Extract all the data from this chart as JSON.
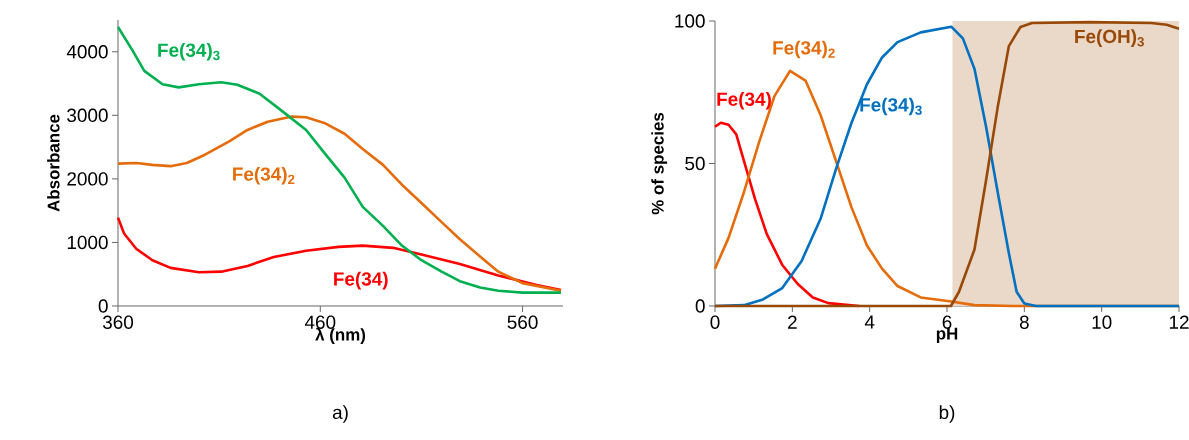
{
  "chart_data": [
    {
      "type": "line",
      "xlabel": "λ (nm)",
      "ylabel": "Absorbance",
      "xlim": [
        360,
        580
      ],
      "ylim": [
        0,
        4500
      ],
      "xticks": [
        360,
        460,
        560
      ],
      "yticks": [
        0,
        1000,
        2000,
        3000,
        4000
      ],
      "annotations": [
        "a)"
      ],
      "series": [
        {
          "name": "Fe(34)",
          "color": "#ff0000",
          "x": [
            360,
            363,
            369,
            377,
            386,
            400,
            411,
            424,
            437,
            453,
            469,
            481,
            496,
            510,
            529,
            548,
            567,
            579
          ],
          "values": [
            1390,
            1140,
            900,
            720,
            600,
            530,
            540,
            630,
            770,
            870,
            930,
            950,
            915,
            810,
            660,
            480,
            330,
            250
          ]
        },
        {
          "name": "Fe(34)$_{2}$",
          "color": "#e46c0a",
          "x": [
            360,
            369,
            377,
            386,
            394,
            403,
            415,
            424,
            434,
            446,
            453,
            462,
            472,
            481,
            491,
            500,
            510,
            520,
            529,
            539,
            548,
            560,
            579
          ],
          "values": [
            2240,
            2250,
            2220,
            2200,
            2250,
            2380,
            2590,
            2770,
            2900,
            2980,
            2970,
            2880,
            2710,
            2470,
            2220,
            1920,
            1620,
            1320,
            1050,
            780,
            540,
            360,
            240
          ]
        },
        {
          "name": "Fe(34)$_{3}$",
          "color": "#00b050",
          "x": [
            360,
            367,
            373,
            382,
            390,
            400,
            411,
            419,
            430,
            441,
            453,
            462,
            472,
            481,
            491,
            500,
            510,
            520,
            529,
            539,
            548,
            560,
            579
          ],
          "values": [
            4390,
            4030,
            3700,
            3490,
            3440,
            3490,
            3520,
            3480,
            3340,
            3070,
            2770,
            2410,
            2020,
            1560,
            1260,
            960,
            720,
            540,
            390,
            290,
            240,
            210,
            210
          ]
        }
      ]
    },
    {
      "type": "line",
      "xlabel": "pH",
      "ylabel": "% of species",
      "xlim": [
        0,
        12
      ],
      "ylim": [
        0,
        100
      ],
      "xticks": [
        0,
        2,
        4,
        6,
        8,
        10,
        12
      ],
      "yticks": [
        0,
        50,
        100
      ],
      "annotations": [
        "b)"
      ],
      "bands": [
        {
          "axis": "x",
          "from": 6.14,
          "to": 12,
          "color": "#ead9c9"
        }
      ],
      "series": [
        {
          "name": "Fe(34)",
          "color": "#ff0000",
          "x": [
            0,
            0.15,
            0.35,
            0.55,
            0.75,
            1.04,
            1.34,
            1.74,
            2.14,
            2.53,
            2.93,
            3.73
          ],
          "values": [
            62.9,
            64.3,
            63.6,
            60.2,
            50.8,
            37.3,
            25.2,
            14.4,
            7.7,
            3,
            1,
            0
          ]
        },
        {
          "name": "Fe(34)$_{2}$",
          "color": "#e46c0a",
          "x": [
            0,
            0.35,
            0.75,
            1.14,
            1.54,
            1.94,
            2.34,
            2.73,
            3.13,
            3.53,
            3.93,
            4.32,
            4.72,
            5.32,
            6.11,
            6.71,
            7.7,
            12
          ],
          "values": [
            13.1,
            23.9,
            40,
            57.5,
            73.7,
            82.5,
            79.1,
            67,
            50.8,
            34.6,
            21.2,
            13.1,
            7,
            3,
            1.6,
            0.3,
            0,
            0
          ]
        },
        {
          "name": "Fe(34)$_{3}$",
          "color": "#0070c0",
          "x": [
            0,
            0.75,
            1.24,
            1.74,
            2.24,
            2.73,
            3.13,
            3.53,
            3.93,
            4.32,
            4.72,
            5.32,
            6.11,
            6.41,
            6.71,
            7.01,
            7.31,
            7.6,
            7.8,
            8.0,
            8.3,
            12
          ],
          "values": [
            0,
            0.3,
            2.3,
            6.3,
            15.8,
            30.6,
            48.1,
            64.3,
            77.8,
            87.2,
            92.6,
            96,
            98,
            93.9,
            83.2,
            62.9,
            40,
            18.5,
            5,
            0.9,
            0,
            0
          ]
        },
        {
          "name": "Fe(OH)$_{3}$",
          "color": "#984807",
          "x": [
            0,
            6.1,
            6.31,
            6.71,
            7.01,
            7.31,
            7.6,
            7.9,
            8.2,
            9.69,
            11.28,
            11.68,
            12
          ],
          "values": [
            0,
            0,
            5,
            19.8,
            44.1,
            69.7,
            91.2,
            97.9,
            99.3,
            99.6,
            99.3,
            98.7,
            97.3
          ]
        }
      ]
    }
  ]
}
